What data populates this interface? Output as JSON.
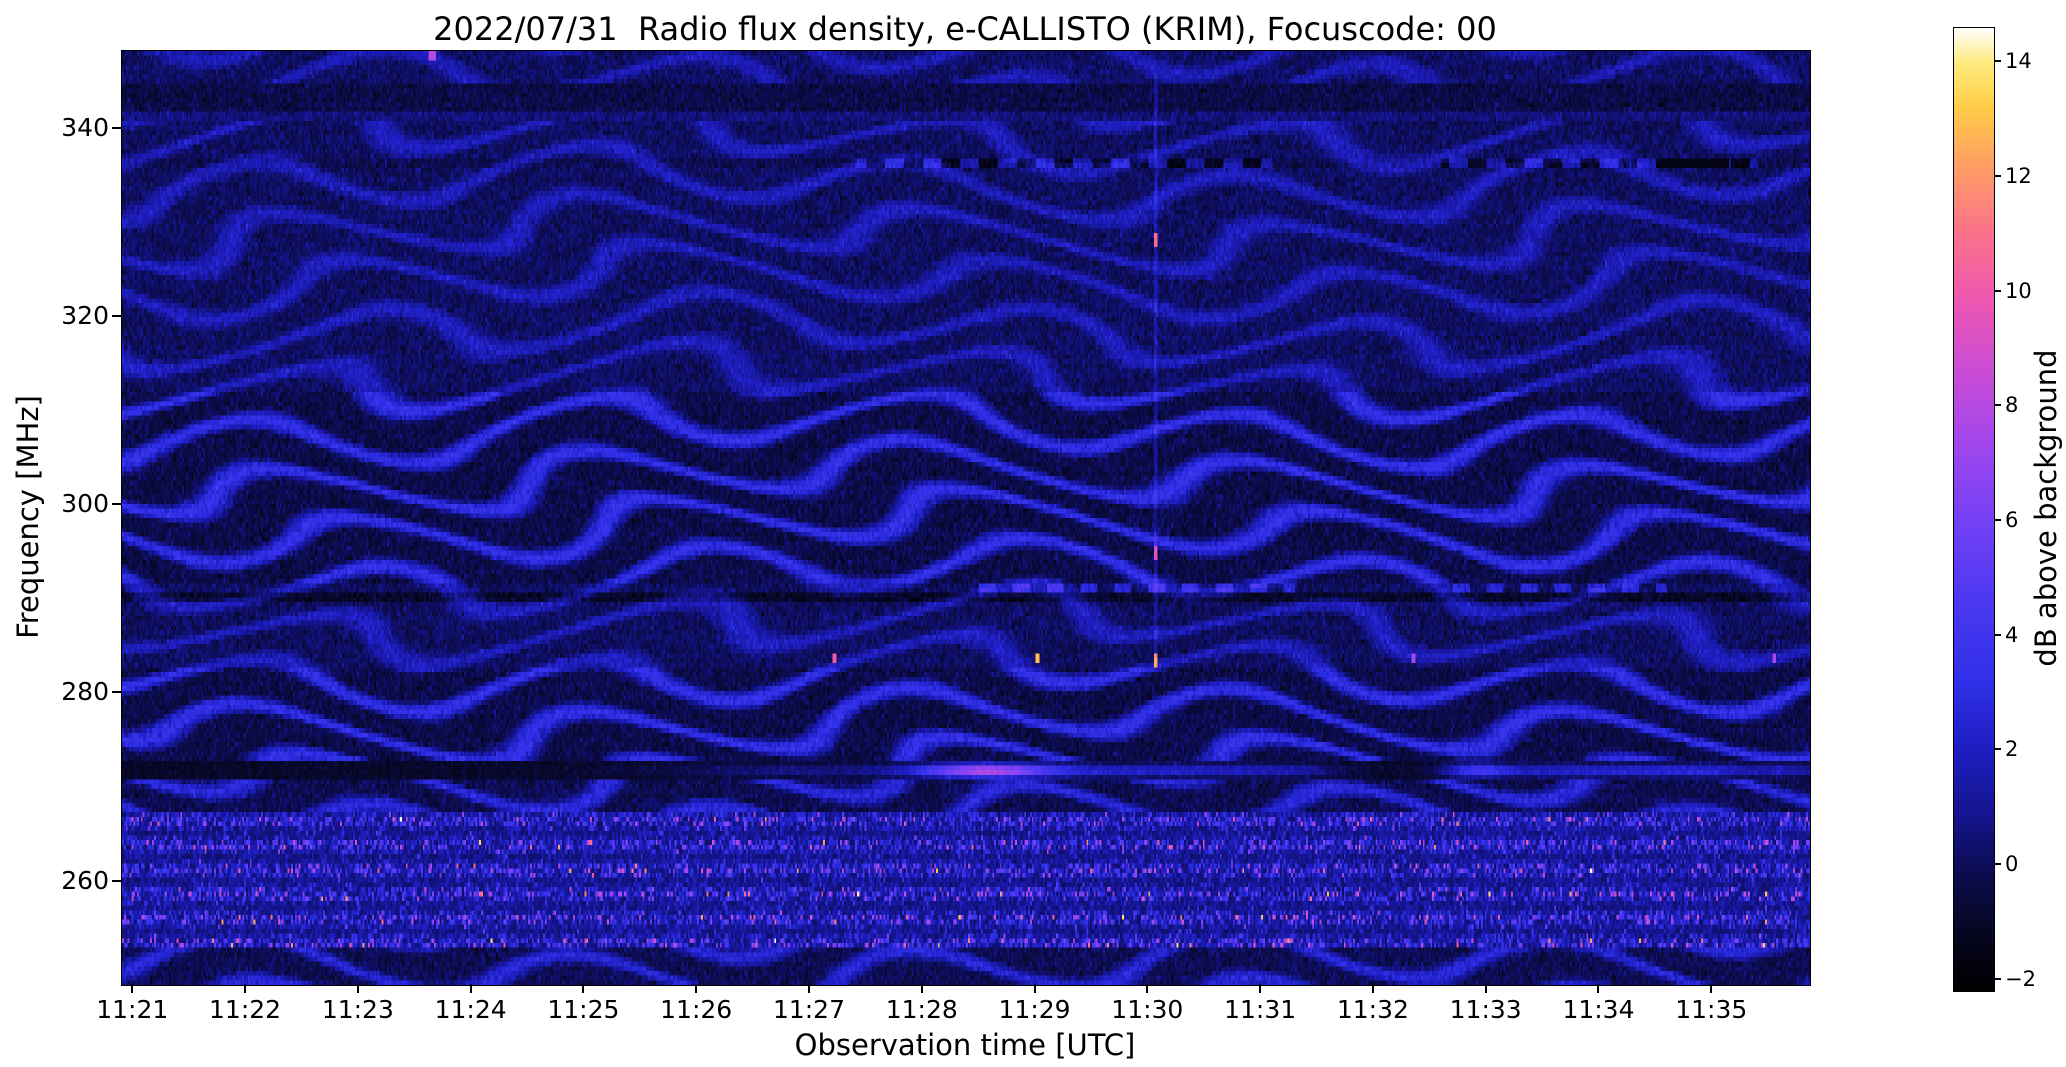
{
  "chart_data": {
    "type": "heatmap",
    "title": "2022/07/31  Radio flux density, e-CALLISTO (KRIM), Focuscode: 00",
    "xlabel": "Observation time [UTC]",
    "ylabel": "Frequency [MHz]",
    "colorbar_label": "dB above background",
    "x_ticks": {
      "labels": [
        "11:21",
        "11:22",
        "11:23",
        "11:24",
        "11:25",
        "11:26",
        "11:27",
        "11:28",
        "11:29",
        "11:30",
        "11:31",
        "11:32",
        "11:33",
        "11:34",
        "11:35"
      ],
      "t_min": [
        21,
        22,
        23,
        24,
        25,
        26,
        27,
        28,
        29,
        30,
        31,
        32,
        33,
        34,
        35
      ]
    },
    "y_ticks": {
      "labels": [
        "340",
        "320",
        "300",
        "280",
        "260"
      ],
      "values": [
        340,
        320,
        300,
        280,
        260
      ]
    },
    "colorbar_ticks": {
      "labels": [
        "14",
        "12",
        "10",
        "8",
        "6",
        "4",
        "2",
        "0",
        "−2"
      ],
      "values": [
        14,
        12,
        10,
        8,
        6,
        4,
        2,
        0,
        -2
      ]
    },
    "time_axis": {
      "start_s": 1254,
      "end_s": 2152,
      "start_utc": "11:20:54",
      "end_utc": "11:35:52"
    },
    "freq_min_mhz": 249.0,
    "freq_max_mhz": 348.3,
    "value_min_db": -2.2,
    "value_max_db": 14.6,
    "colormap_stops": [
      {
        "x": 0.0,
        "color": "#000000"
      },
      {
        "x": 0.055,
        "color": "#06061f"
      },
      {
        "x": 0.12,
        "color": "#0c0c4e"
      },
      {
        "x": 0.18,
        "color": "#14148c"
      },
      {
        "x": 0.25,
        "color": "#1e1ec2"
      },
      {
        "x": 0.32,
        "color": "#3030e8"
      },
      {
        "x": 0.4,
        "color": "#4a38f2"
      },
      {
        "x": 0.48,
        "color": "#7040f5"
      },
      {
        "x": 0.56,
        "color": "#9c46ee"
      },
      {
        "x": 0.64,
        "color": "#c94cd8"
      },
      {
        "x": 0.72,
        "color": "#ee58b0"
      },
      {
        "x": 0.79,
        "color": "#fb7488"
      },
      {
        "x": 0.86,
        "color": "#ff9f62"
      },
      {
        "x": 0.92,
        "color": "#ffcf48"
      },
      {
        "x": 0.965,
        "color": "#ffec83"
      },
      {
        "x": 1.0,
        "color": "#ffffff"
      }
    ],
    "features": {
      "background": {
        "base_db": 0.55,
        "noise_sigma_db": 0.45
      },
      "fringes": {
        "desc": "slow wavy horizontal interference fringes",
        "period_mhz": 5.2,
        "bands": [
          [
            249.0,
            253.2,
            1.5
          ],
          [
            267.5,
            271.0,
            1.6
          ],
          [
            272.8,
            312.0,
            1.9
          ],
          [
            312.0,
            341.0,
            1.0
          ],
          [
            345.0,
            348.3,
            0.9
          ]
        ],
        "quiet_zone": [
          283.0,
          291.5,
          0.55
        ]
      },
      "rfi_speckle_band": {
        "freq": [
          253.2,
          267.5
        ],
        "row_period_mhz": 2.6,
        "desc": "broadband RFI speckle with pink/orange/yellow bursts"
      },
      "dark_lane_271": {
        "freq": [
          270.9,
          272.8
        ],
        "base_db": -1.4
      },
      "bright_drift_271": {
        "freq": [
          271.0,
          272.6
        ],
        "center_mhz": 271.8,
        "events": [
          {
            "m": 27.0,
            "s": 60,
            "p": 2.0
          },
          {
            "m": 28.55,
            "s": 26,
            "p": 9.0
          },
          {
            "m": 29.6,
            "s": 45,
            "p": 2.8
          },
          {
            "m": 30.6,
            "s": 35,
            "p": 2.2
          },
          {
            "m": 31.3,
            "s": 20,
            "p": 1.8
          },
          {
            "m": 32.9,
            "s": 13,
            "p": 5.0
          },
          {
            "m": 33.5,
            "s": 25,
            "p": 3.0
          },
          {
            "m": 34.3,
            "s": 25,
            "p": 3.2
          },
          {
            "m": 35.0,
            "s": 20,
            "p": 3.4
          },
          {
            "m": 35.7,
            "s": 15,
            "p": 2.8
          }
        ]
      },
      "dark_line_290": {
        "freq": [
          289.9,
          290.8
        ],
        "delta_db": -1.1
      },
      "dashed_row_291": {
        "freq": [
          290.9,
          291.8
        ],
        "windows_min": [
          [
            28.35,
            31.3
          ],
          [
            32.65,
            34.6
          ]
        ],
        "dash_period_s": 9,
        "peak_db": 2.4
      },
      "dashed_row_336": {
        "freq": [
          335.8,
          336.9
        ],
        "windows_min": [
          [
            27.4,
            31.1
          ],
          [
            32.6,
            35.4
          ]
        ],
        "dash_period_s": 10,
        "peak_db": 1.6,
        "dip_db": -1.2,
        "black_dashes_min": [
          [
            34.55,
            35.15
          ]
        ]
      },
      "dark_band_343": {
        "freq": [
          342.0,
          345.0
        ],
        "delta_db": -0.9
      },
      "vertical_event": {
        "t_min": 30.07,
        "freq": [
          283.0,
          346.0
        ],
        "delta_db": 1.4,
        "hotspots": [
          {
            "f": 328.3,
            "p": 11
          },
          {
            "f": 295.0,
            "p": 9
          },
          {
            "f": 283.6,
            "p": 12
          }
        ]
      },
      "point_bursts_283": {
        "freq": 283.6,
        "events": [
          {
            "m": 27.22,
            "db": 10
          },
          {
            "m": 29.02,
            "db": 13
          },
          {
            "m": 32.35,
            "db": 7.5
          },
          {
            "m": 35.55,
            "db": 7.5
          }
        ]
      },
      "top_edge_dot": {
        "freq": 347.9,
        "m": 23.65,
        "db": 8
      }
    }
  }
}
